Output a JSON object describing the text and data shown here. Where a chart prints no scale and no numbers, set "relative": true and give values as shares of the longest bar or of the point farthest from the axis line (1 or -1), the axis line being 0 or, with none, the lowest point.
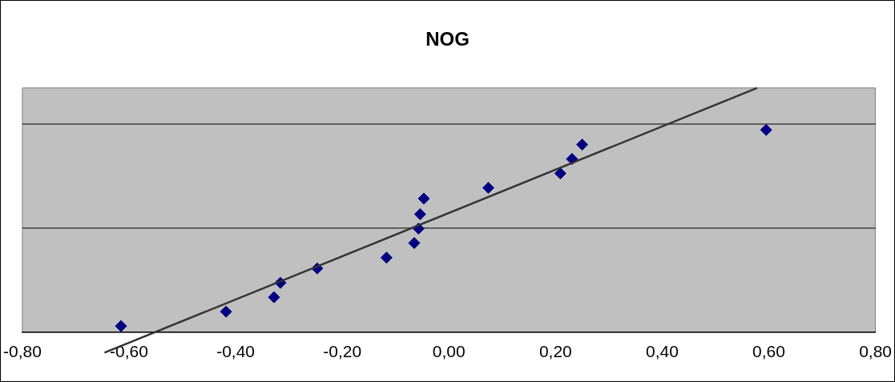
{
  "chart_data": {
    "type": "scatter",
    "title": "NOG",
    "relative": true,
    "marker": "diamond",
    "legend": false,
    "ref_lines": [
      {
        "axis": "y",
        "value": 0.426,
        "color": "#000000"
      },
      {
        "axis": "y",
        "value": 0.852,
        "color": "#000000"
      }
    ],
    "xlim": [
      -0.8,
      0.8
    ],
    "xticks": [
      {
        "value": -0.8,
        "label": "-0,80"
      },
      {
        "value": -0.6,
        "label": "-0,60"
      },
      {
        "value": -0.4,
        "label": "-0,40"
      },
      {
        "value": -0.2,
        "label": "-0,20"
      },
      {
        "value": 0,
        "label": "0,00"
      },
      {
        "value": 0.2,
        "label": "0,20"
      },
      {
        "value": 0.4,
        "label": "0,40"
      },
      {
        "value": 0.6,
        "label": "0,60"
      },
      {
        "value": 0.8,
        "label": "0,80"
      }
    ],
    "series": [
      {
        "color": "#000080",
        "x": [
          -0.615,
          -0.418,
          -0.328,
          -0.316,
          -0.247,
          -0.117,
          -0.065,
          -0.057,
          -0.054,
          -0.047,
          0.074,
          0.209,
          0.231,
          0.25,
          0.595
        ],
        "values": [
          0.025,
          0.084,
          0.143,
          0.202,
          0.261,
          0.305,
          0.365,
          0.424,
          0.483,
          0.547,
          0.591,
          0.65,
          0.709,
          0.768,
          0.828
        ]
      },
      {
        "type": "line",
        "marker": "none",
        "color": "#333333",
        "x": [
          -0.646,
          0.578
        ],
        "values": [
          -0.084,
          1
        ]
      }
    ]
  }
}
